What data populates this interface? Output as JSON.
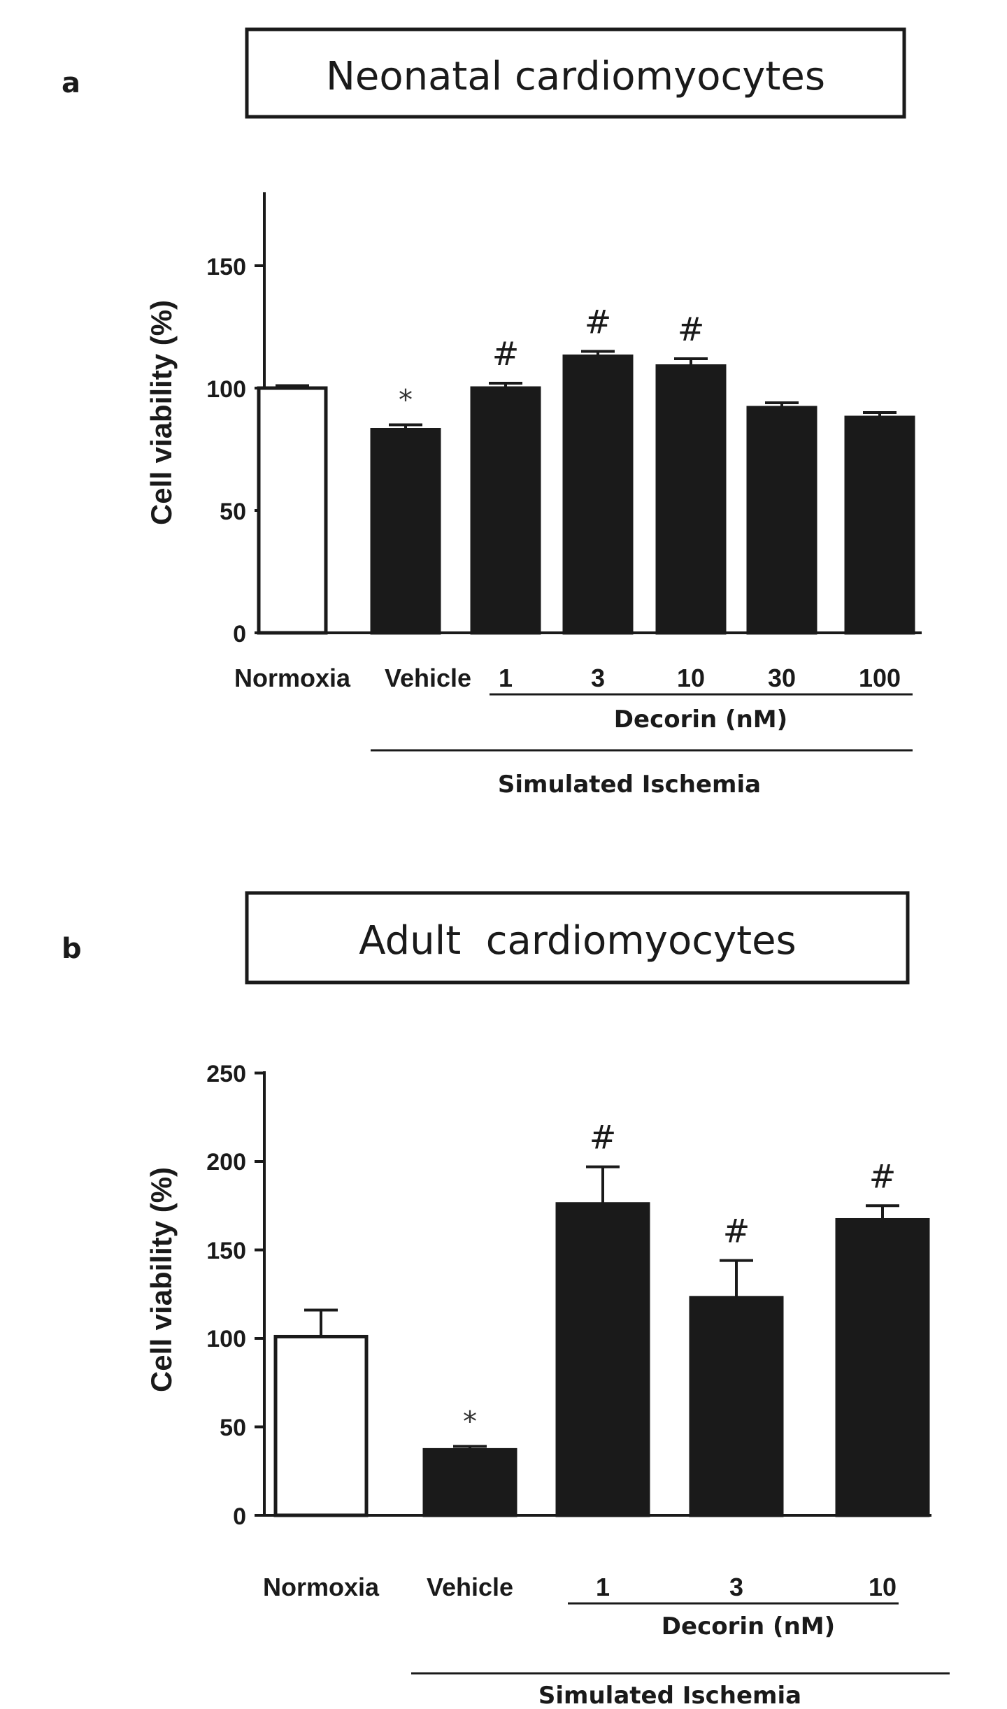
{
  "panels": [
    {
      "letter": "a",
      "title": "Neonatal cardiomyocytes",
      "chart_data": {
        "type": "bar",
        "categories": [
          "Normoxia",
          "Vehicle",
          "1",
          "3",
          "10",
          "30",
          "100"
        ],
        "values": [
          100,
          83,
          100,
          113,
          109,
          92,
          88
        ],
        "errors": [
          1,
          2,
          2,
          2,
          3,
          2,
          2
        ],
        "fills": [
          "#ffffff",
          "#1a1a1a",
          "#1a1a1a",
          "#1a1a1a",
          "#1a1a1a",
          "#1a1a1a",
          "#1a1a1a"
        ],
        "significance": [
          "",
          "*",
          "#",
          "#",
          "#",
          "",
          ""
        ],
        "ylabel": "Cell viability (%)",
        "yticks": [
          0,
          50,
          100,
          150
        ],
        "ylim": [
          0,
          180
        ],
        "group_labels": {
          "decorin": "Decorin (nM)",
          "ischemia": "Simulated Ischemia"
        }
      }
    },
    {
      "letter": "b",
      "title": "Adult  cardiomyocytes",
      "chart_data": {
        "type": "bar",
        "categories": [
          "Normoxia",
          "Vehicle",
          "1",
          "3",
          "10"
        ],
        "values": [
          101,
          37,
          176,
          123,
          167
        ],
        "errors": [
          15,
          2,
          21,
          21,
          8
        ],
        "fills": [
          "#ffffff",
          "#1a1a1a",
          "#1a1a1a",
          "#1a1a1a",
          "#1a1a1a"
        ],
        "significance": [
          "",
          "*",
          "#",
          "#",
          "#"
        ],
        "ylabel": "Cell viability (%)",
        "yticks": [
          0,
          50,
          100,
          150,
          200,
          250
        ],
        "ylim": [
          0,
          250
        ],
        "group_labels": {
          "decorin": "Decorin (nM)",
          "ischemia": "Simulated Ischemia"
        }
      }
    }
  ]
}
